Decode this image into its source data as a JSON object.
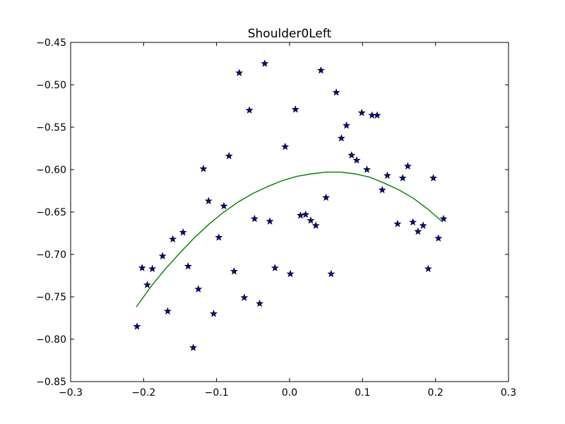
{
  "chart_data": {
    "type": "scatter",
    "title": "Shoulder0Left",
    "xlabel": "",
    "ylabel": "",
    "xlim": [
      -0.3,
      0.3
    ],
    "ylim": [
      -0.85,
      -0.45
    ],
    "grid": false,
    "x_ticks": [
      -0.3,
      -0.2,
      -0.1,
      0.0,
      0.1,
      0.2,
      0.3
    ],
    "x_tick_labels": [
      "−0.3",
      "−0.2",
      "−0.1",
      "0.0",
      "0.1",
      "0.2",
      "0.3"
    ],
    "y_ticks": [
      -0.45,
      -0.5,
      -0.55,
      -0.6,
      -0.65,
      -0.7,
      -0.75,
      -0.8,
      -0.85
    ],
    "y_tick_labels": [
      "−0.45",
      "−0.50",
      "−0.55",
      "−0.60",
      "−0.65",
      "−0.70",
      "−0.75",
      "−0.80",
      "−0.85"
    ],
    "series": [
      {
        "type": "scatter",
        "marker": "star",
        "color": "#0000cc",
        "x": [
          -0.209,
          -0.202,
          -0.195,
          -0.188,
          -0.174,
          -0.167,
          -0.16,
          -0.146,
          -0.139,
          -0.132,
          -0.125,
          -0.118,
          -0.111,
          -0.104,
          -0.097,
          -0.09,
          -0.083,
          -0.076,
          -0.069,
          -0.062,
          -0.055,
          -0.048,
          -0.041,
          -0.034,
          -0.027,
          -0.02,
          -0.006,
          0.001,
          0.008,
          0.015,
          0.022,
          0.029,
          0.036,
          0.043,
          0.05,
          0.057,
          0.064,
          0.071,
          0.078,
          0.085,
          0.092,
          0.099,
          0.106,
          0.113,
          0.12,
          0.127,
          0.134,
          0.148,
          0.155,
          0.162,
          0.169,
          0.176,
          0.183,
          0.19,
          0.197,
          0.204,
          0.211
        ],
        "y": [
          -0.785,
          -0.716,
          -0.736,
          -0.717,
          -0.702,
          -0.767,
          -0.682,
          -0.674,
          -0.714,
          -0.81,
          -0.741,
          -0.599,
          -0.637,
          -0.77,
          -0.68,
          -0.643,
          -0.584,
          -0.72,
          -0.486,
          -0.751,
          -0.53,
          -0.658,
          -0.758,
          -0.475,
          -0.661,
          -0.716,
          -0.573,
          -0.723,
          -0.529,
          -0.654,
          -0.653,
          -0.66,
          -0.666,
          -0.483,
          -0.633,
          -0.723,
          -0.509,
          -0.563,
          -0.548,
          -0.583,
          -0.589,
          -0.533,
          -0.6,
          -0.536,
          -0.536,
          -0.624,
          -0.607,
          -0.664,
          -0.61,
          -0.596,
          -0.662,
          -0.673,
          -0.666,
          -0.717,
          -0.61,
          -0.681,
          -0.658
        ]
      },
      {
        "type": "line",
        "color": "#008000",
        "x": [
          -0.21,
          -0.19,
          -0.17,
          -0.15,
          -0.13,
          -0.11,
          -0.09,
          -0.07,
          -0.05,
          -0.03,
          -0.01,
          0.01,
          0.03,
          0.05,
          0.07,
          0.09,
          0.11,
          0.13,
          0.15,
          0.17,
          0.19,
          0.21
        ],
        "y": [
          -0.762,
          -0.738,
          -0.717,
          -0.698,
          -0.68,
          -0.664,
          -0.65,
          -0.638,
          -0.628,
          -0.62,
          -0.613,
          -0.608,
          -0.605,
          -0.603,
          -0.603,
          -0.605,
          -0.609,
          -0.616,
          -0.624,
          -0.634,
          -0.647,
          -0.662
        ]
      }
    ]
  }
}
